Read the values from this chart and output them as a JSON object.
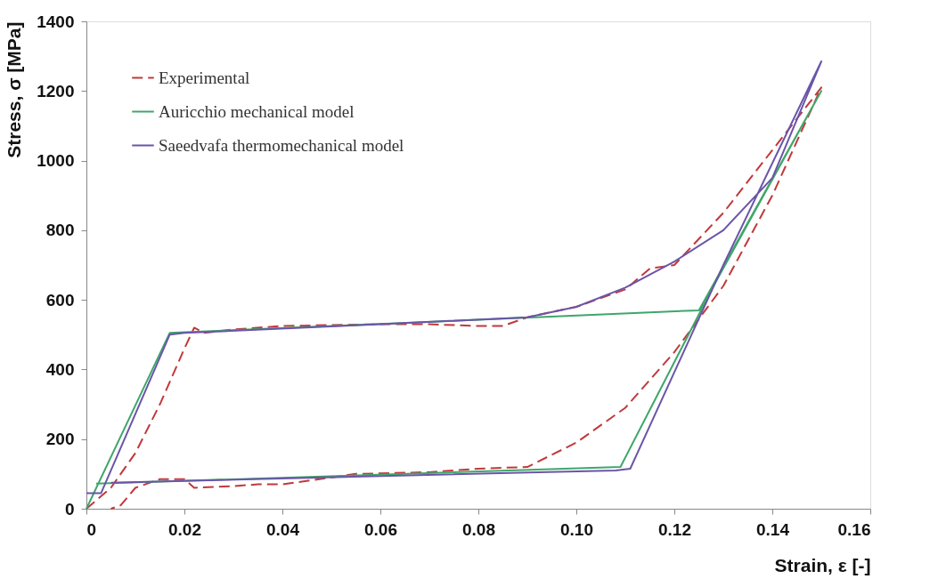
{
  "chart_data": {
    "type": "line",
    "xlabel": "Strain, ε [-]",
    "ylabel": "Stress, σ [MPa]",
    "xlim": [
      0,
      0.16
    ],
    "xticks": [
      0,
      {
        "value": 0.02,
        "label": "0.02"
      },
      {
        "value": 0.04,
        "label": "0.04"
      },
      {
        "value": 0.06,
        "label": "0.06"
      },
      {
        "value": 0.08,
        "label": "0.08"
      },
      {
        "value": 0.1,
        "label": "0.10"
      },
      {
        "value": 0.12,
        "label": "0.12"
      },
      {
        "value": 0.14,
        "label": "0.14"
      },
      {
        "value": 0.16,
        "label": "0.16"
      }
    ],
    "ylim": [
      0,
      1400
    ],
    "yticks": [
      0,
      200,
      400,
      600,
      800,
      1000,
      1200,
      1400
    ],
    "grid": false,
    "legend": "top left",
    "series": [
      {
        "name": "Experimental",
        "color": "#c0393b",
        "line_style": "dashed",
        "x": [
          0,
          0.005,
          0.01,
          0.015,
          0.02,
          0.022,
          0.024,
          0.03,
          0.04,
          0.06,
          0.07,
          0.08,
          0.085,
          0.09,
          0.1,
          0.11,
          0.115,
          0.12,
          0.13,
          0.14,
          0.15,
          0.14,
          0.13,
          0.12,
          0.11,
          0.1,
          0.09,
          0.08,
          0.07,
          0.055,
          0.04,
          0.035,
          0.03,
          0.022,
          0.02,
          0.015,
          0.01,
          0.007,
          0.005
        ],
        "values": [
          0,
          60,
          160,
          300,
          460,
          520,
          505,
          515,
          525,
          530,
          530,
          525,
          525,
          550,
          580,
          630,
          690,
          700,
          850,
          1030,
          1210,
          900,
          640,
          450,
          290,
          190,
          120,
          115,
          105,
          100,
          70,
          70,
          65,
          60,
          85,
          85,
          60,
          10,
          0
        ]
      },
      {
        "name": "Auricchio mechanical model",
        "color": "#3fa66a",
        "line_style": "solid",
        "x": [
          0,
          0.017,
          0.125,
          0.127,
          0.15,
          0.128,
          0.109,
          0.002
        ],
        "values": [
          0,
          505,
          570,
          620,
          1200,
          640,
          120,
          72
        ]
      },
      {
        "name": "Saeedvafa thermomechanical model",
        "color": "#6a55a8",
        "line_style": "solid",
        "x": [
          0,
          0.003,
          0.017,
          0.02,
          0.06,
          0.09,
          0.1,
          0.11,
          0.12,
          0.13,
          0.14,
          0.15,
          0.13,
          0.111,
          0.108,
          0.005
        ],
        "values": [
          45,
          45,
          500,
          505,
          530,
          550,
          580,
          635,
          710,
          800,
          950,
          1285,
          700,
          115,
          110,
          75
        ]
      }
    ]
  }
}
